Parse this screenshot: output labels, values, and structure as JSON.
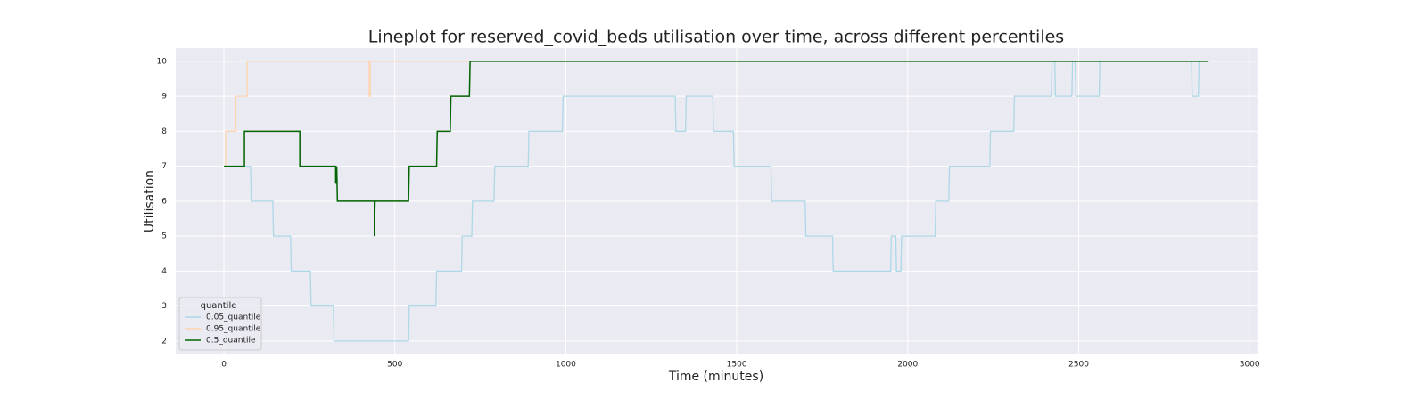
{
  "chart_data": {
    "type": "line",
    "title": "Lineplot for reserved_covid_beds utilisation over time, across different percentiles",
    "xlabel": "Time (minutes)",
    "ylabel": "Utilisation",
    "legend_title": "quantile",
    "legend": "lower left",
    "grid": true,
    "xlim": [
      -141,
      3023
    ],
    "xticks": [
      0,
      500,
      1000,
      1500,
      2000,
      2500,
      3000
    ],
    "ylim": [
      1.64,
      10.38
    ],
    "yticks": [
      2,
      3,
      4,
      5,
      6,
      7,
      8,
      9,
      10
    ],
    "series": [
      {
        "name": "0.05_quantile",
        "color": "#add8e6",
        "x": [
          0,
          78,
          80,
          143,
          145,
          195,
          197,
          253,
          255,
          320,
          322,
          540,
          542,
          620,
          622,
          695,
          697,
          725,
          727,
          790,
          792,
          890,
          892,
          990,
          992,
          1320,
          1322,
          1350,
          1352,
          1430,
          1432,
          1490,
          1492,
          1600,
          1602,
          1700,
          1702,
          1780,
          1782,
          1950,
          1952,
          1965,
          1967,
          1980,
          1982,
          2080,
          2082,
          2120,
          2122,
          2240,
          2242,
          2310,
          2312,
          2420,
          2422,
          2430,
          2432,
          2480,
          2482,
          2490,
          2492,
          2560,
          2562,
          2830,
          2832,
          2850,
          2852,
          2880
        ],
        "values": [
          7,
          7,
          6,
          6,
          5,
          5,
          4,
          4,
          3,
          3,
          2,
          2,
          3,
          3,
          4,
          4,
          5,
          5,
          6,
          6,
          7,
          7,
          8,
          8,
          9,
          9,
          8,
          8,
          9,
          9,
          8,
          8,
          7,
          7,
          6,
          6,
          5,
          5,
          4,
          4,
          5,
          5,
          4,
          4,
          5,
          5,
          6,
          6,
          7,
          7,
          8,
          8,
          9,
          9,
          10,
          10,
          9,
          9,
          10,
          10,
          9,
          9,
          10,
          10,
          9,
          9,
          10,
          10
        ]
      },
      {
        "name": "0.95_quantile",
        "color": "#fdd5b1",
        "x": [
          0,
          5,
          5,
          35,
          35,
          68,
          68,
          425,
          425,
          428,
          428,
          720,
          2880
        ],
        "values": [
          7,
          7,
          8,
          8,
          9,
          9,
          10,
          10,
          9,
          9,
          10,
          10,
          10
        ]
      },
      {
        "name": "0.5_quantile",
        "color": "#006400",
        "x": [
          0,
          60,
          60,
          222,
          222,
          327,
          327,
          330,
          332,
          440,
          440,
          442,
          540,
          542,
          622,
          624,
          662,
          664,
          718,
          720,
          2880
        ],
        "values": [
          7,
          7,
          8,
          8,
          7,
          7,
          6.5,
          7,
          6,
          6,
          5,
          6,
          6,
          7,
          7,
          8,
          8,
          9,
          9,
          10,
          10
        ]
      }
    ]
  }
}
